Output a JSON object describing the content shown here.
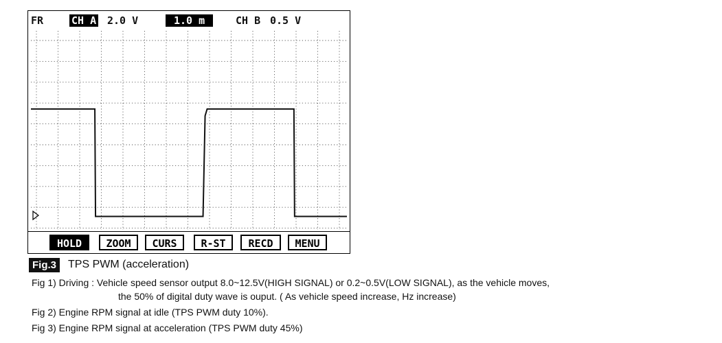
{
  "scope": {
    "header": {
      "mode": "FR",
      "ch_a_label": "CH A",
      "ch_a_scale": "2.0 V",
      "timebase": "1.0 m",
      "ch_b_label": "CH B",
      "ch_b_scale": "0.5 V"
    },
    "trace": {
      "high_level_div": 5.3,
      "low_level_div": 0.15,
      "transitions_div": [
        2.7,
        7.7,
        11.9
      ],
      "duty_percent": 45
    },
    "grid": {
      "x_divisions": 14,
      "y_divisions": 9
    },
    "buttons": [
      {
        "label": "HOLD",
        "active": true
      },
      {
        "label": "ZOOM",
        "active": false
      },
      {
        "label": "CURS",
        "active": false
      },
      {
        "label": "R-ST",
        "active": false
      },
      {
        "label": "RECD",
        "active": false
      },
      {
        "label": "MENU",
        "active": false
      }
    ]
  },
  "caption": {
    "tag": "Fig.3",
    "title": "TPS PWM (acceleration)"
  },
  "notes": [
    "Fig 1) Driving : Vehicle speed sensor output 8.0~12.5V(HIGH SIGNAL) or 0.2~0.5V(LOW SIGNAL), as the vehicle moves,",
    "the 50% of digital duty wave is ouput. ( As vehicle speed increase, Hz increase)",
    "Fig 2) Engine RPM signal at idle (TPS PWM duty 10%).",
    "Fig 3) Engine RPM signal at acceleration (TPS PWM duty 45%)"
  ],
  "colors": {
    "trace": "#111111",
    "grid": "#555555",
    "inverse_bg": "#000000"
  }
}
